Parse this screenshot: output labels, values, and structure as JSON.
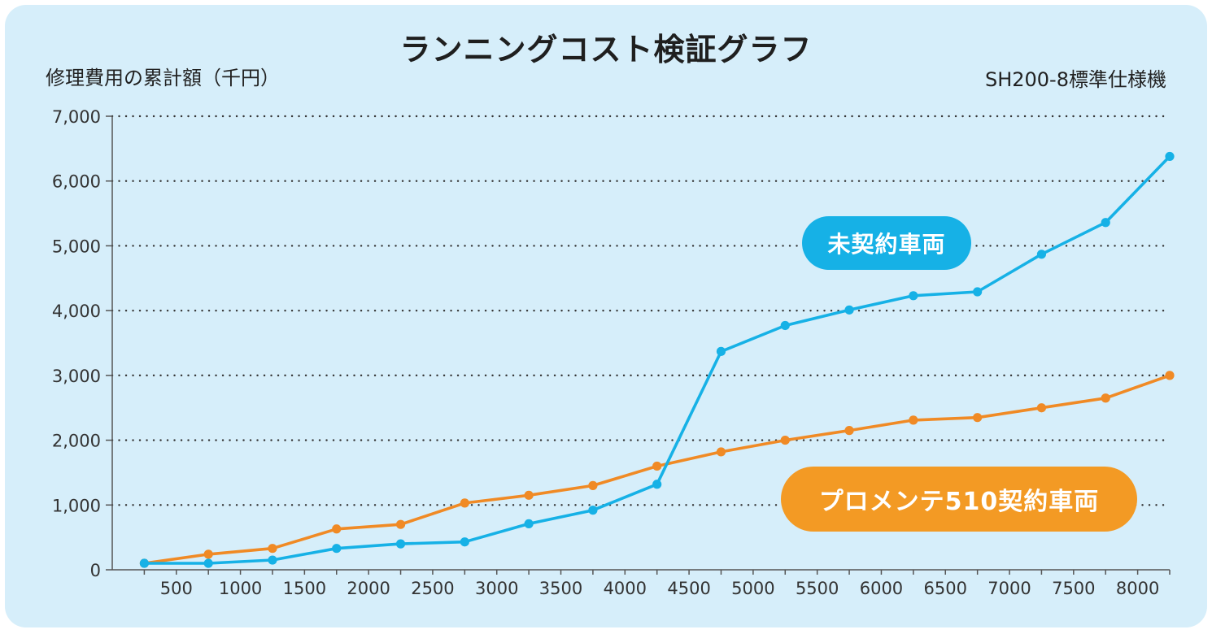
{
  "title": "ランニングコスト検証グラフ",
  "ylabel": "修理費用の累計額（千円）",
  "note": "SH200-8標準仕様機",
  "colors": {
    "background": "#d6eefa",
    "blue": "#16b1e6",
    "orange": "#f08a25",
    "orange_badge": "#f39a24"
  },
  "chart_data": {
    "type": "line",
    "title": "ランニングコスト検証グラフ",
    "ylabel": "修理費用の累計額（千円）",
    "xlabel": "",
    "x_ticks": [
      500,
      1000,
      1500,
      2000,
      2500,
      3000,
      3500,
      4000,
      4500,
      5000,
      5500,
      6000,
      6500,
      7000,
      7500,
      8000
    ],
    "x_tick_labels": [
      "500",
      "1000",
      "1500",
      "2000",
      "2500",
      "3000",
      "3500",
      "4000",
      "4500",
      "5000",
      "5500",
      "6000",
      "6500",
      "7000",
      "7500",
      "8000"
    ],
    "y_ticks": [
      0,
      1000,
      2000,
      3000,
      4000,
      5000,
      6000,
      7000
    ],
    "y_tick_labels": [
      "0",
      "1,000",
      "2,000",
      "3,000",
      "4,000",
      "5,000",
      "6,000",
      "7,000"
    ],
    "ylim": [
      0,
      7000
    ],
    "grid": "horizontal dotted",
    "x": [
      250,
      750,
      1250,
      1750,
      2250,
      2750,
      3250,
      3750,
      4250,
      4750,
      5250,
      5750,
      6250,
      6750,
      7250,
      7750,
      8250
    ],
    "series": [
      {
        "name": "未契約車両",
        "color": "#16b1e6",
        "values": [
          100,
          100,
          150,
          330,
          400,
          430,
          710,
          920,
          1320,
          3370,
          3770,
          4010,
          4230,
          4290,
          4870,
          5360,
          6380
        ]
      },
      {
        "name": "プロメンテ510契約車両",
        "color": "#f08a25",
        "values": [
          100,
          240,
          330,
          630,
          700,
          1030,
          1150,
          1300,
          1600,
          1820,
          2000,
          2150,
          2310,
          2350,
          2500,
          2650,
          3000
        ]
      }
    ]
  }
}
